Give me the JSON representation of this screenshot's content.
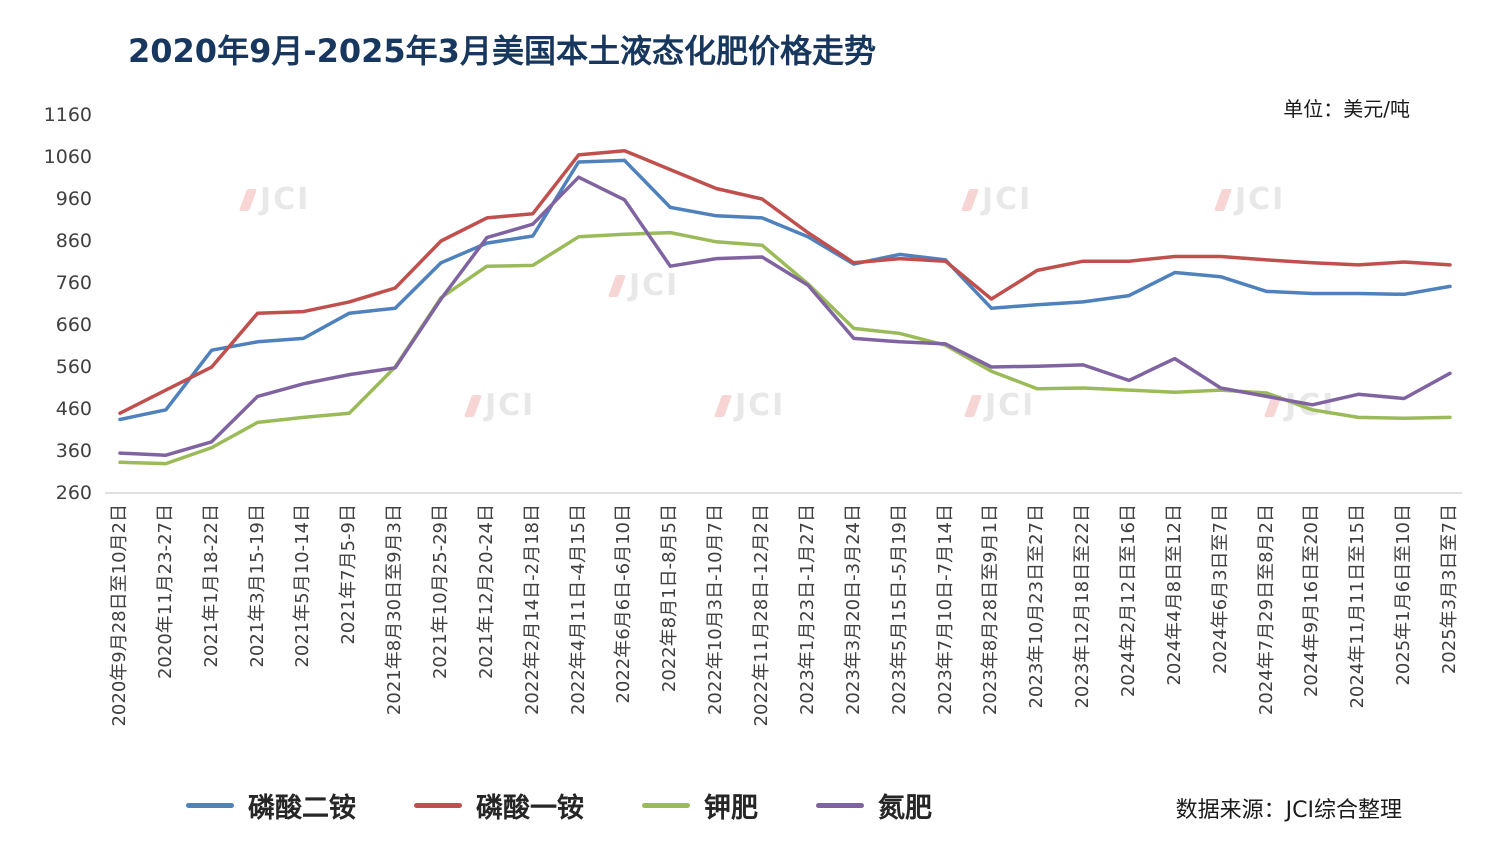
{
  "title": "2020年9月-2025年3月美国本土液态化肥价格走势",
  "unit_label": "单位：美元/吨",
  "source_label": "数据来源：JCI综合整理",
  "watermark": {
    "text": "JCI"
  },
  "colors": {
    "title": "#17375E",
    "axis_line": "#D6D6D6",
    "tick_text": "#404040"
  },
  "chart_data": {
    "type": "line",
    "title": "2020年9月-2025年3月美国本土液态化肥价格走势",
    "ylabel": "美元/吨",
    "ylim": [
      260,
      1160
    ],
    "y_ticks": [
      260,
      360,
      460,
      560,
      660,
      760,
      860,
      960,
      1060,
      1160
    ],
    "grid": false,
    "legend_position": "bottom",
    "categories": [
      "2020年9月28日至10月2日",
      "2020年11月23-27日",
      "2021年1月18-22日",
      "2021年3月15-19日",
      "2021年5月10-14日",
      "2021年7月5-9日",
      "2021年8月30日至9月3日",
      "2021年10月25-29日",
      "2021年12月20-24日",
      "2022年2月14日-2月18日",
      "2022年4月11日-4月15日",
      "2022年6月6日-6月10日",
      "2022年8月1日-8月5日",
      "2022年10月3日-10月7日",
      "2022年11月28日-12月2日",
      "2023年1月23日-1月27日",
      "2023年3月20日-3月24日",
      "2023年5月15日-5月19日",
      "2023年7月10日-7月14日",
      "2023年8月28日至9月1日",
      "2023年10月23日至27日",
      "2023年12月18日至22日",
      "2024年2月12日至16日",
      "2024年4月8日至12日",
      "2024年6月3日至7日",
      "2024年7月29日至8月2日",
      "2024年9月16日至20日",
      "2024年11月11日至15日",
      "2025年1月6日至10日",
      "2025年3月3日至7日"
    ],
    "series": [
      {
        "key": "dap",
        "name": "磷酸二铵",
        "color": "#4F81BD",
        "values": [
          435,
          458,
          600,
          620,
          628,
          688,
          700,
          808,
          855,
          872,
          1048,
          1052,
          940,
          920,
          915,
          870,
          805,
          828,
          815,
          700,
          708,
          715,
          730,
          785,
          775,
          740,
          735,
          735,
          733,
          752
        ]
      },
      {
        "key": "map",
        "name": "磷酸一铵",
        "color": "#C0504D",
        "values": [
          450,
          505,
          560,
          688,
          692,
          715,
          748,
          860,
          915,
          925,
          1065,
          1075,
          1030,
          985,
          960,
          880,
          808,
          818,
          812,
          722,
          790,
          812,
          812,
          823,
          823,
          815,
          808,
          803,
          810,
          803
        ]
      },
      {
        "key": "potash",
        "name": "钾肥",
        "color": "#9BBB59",
        "values": [
          333,
          330,
          368,
          428,
          440,
          450,
          560,
          725,
          800,
          802,
          870,
          876,
          880,
          858,
          850,
          758,
          652,
          640,
          612,
          550,
          508,
          510,
          505,
          500,
          505,
          498,
          458,
          440,
          438,
          440
        ]
      },
      {
        "key": "nitrogen",
        "name": "氮肥",
        "color": "#8064A2",
        "values": [
          355,
          350,
          382,
          490,
          520,
          542,
          558,
          722,
          868,
          900,
          1012,
          958,
          800,
          818,
          822,
          755,
          628,
          620,
          615,
          560,
          562,
          565,
          528,
          580,
          510,
          490,
          470,
          495,
          485,
          545
        ]
      }
    ]
  }
}
